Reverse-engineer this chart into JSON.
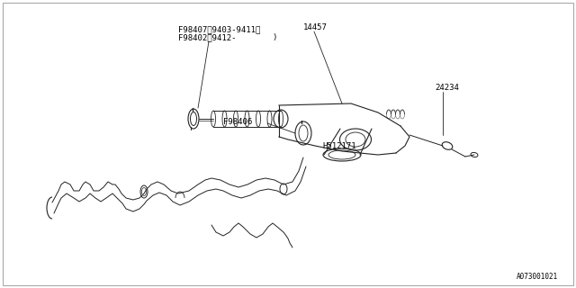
{
  "bg_color": "#ffffff",
  "border_color": "#aaaaaa",
  "line_color": "#222222",
  "text_color": "#000000",
  "font_size_label": 6.5,
  "font_size_small": 5.5,
  "part_number_bottom": "A073001021",
  "labels": {
    "F98407": "F98407〉9403-9411〉",
    "F98402": "F98402〉9412-",
    "label14457": "14457",
    "label24234": "24234",
    "F98406": "F98406",
    "H512171": "H512171"
  }
}
